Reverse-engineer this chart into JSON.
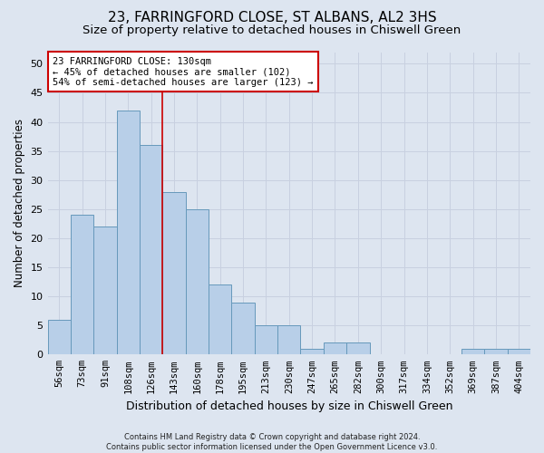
{
  "title": "23, FARRINGFORD CLOSE, ST ALBANS, AL2 3HS",
  "subtitle": "Size of property relative to detached houses in Chiswell Green",
  "xlabel": "Distribution of detached houses by size in Chiswell Green",
  "ylabel": "Number of detached properties",
  "categories": [
    "56sqm",
    "73sqm",
    "91sqm",
    "108sqm",
    "126sqm",
    "143sqm",
    "160sqm",
    "178sqm",
    "195sqm",
    "213sqm",
    "230sqm",
    "247sqm",
    "265sqm",
    "282sqm",
    "300sqm",
    "317sqm",
    "334sqm",
    "352sqm",
    "369sqm",
    "387sqm",
    "404sqm"
  ],
  "values": [
    6,
    24,
    22,
    42,
    36,
    28,
    25,
    12,
    9,
    5,
    5,
    1,
    2,
    2,
    0,
    0,
    0,
    0,
    1,
    1,
    1
  ],
  "bar_color": "#b8cfe8",
  "bar_edge_color": "#6699bb",
  "grid_color": "#c8d0e0",
  "background_color": "#dde5f0",
  "property_line_x": 4.5,
  "annotation_text": "23 FARRINGFORD CLOSE: 130sqm\n← 45% of detached houses are smaller (102)\n54% of semi-detached houses are larger (123) →",
  "annotation_box_color": "#ffffff",
  "annotation_box_edge": "#cc0000",
  "vline_color": "#cc0000",
  "footer_line1": "Contains HM Land Registry data © Crown copyright and database right 2024.",
  "footer_line2": "Contains public sector information licensed under the Open Government Licence v3.0.",
  "ylim": [
    0,
    52
  ],
  "yticks": [
    0,
    5,
    10,
    15,
    20,
    25,
    30,
    35,
    40,
    45,
    50
  ],
  "title_fontsize": 11,
  "subtitle_fontsize": 9.5,
  "tick_fontsize": 7.5,
  "ylabel_fontsize": 8.5,
  "xlabel_fontsize": 9
}
